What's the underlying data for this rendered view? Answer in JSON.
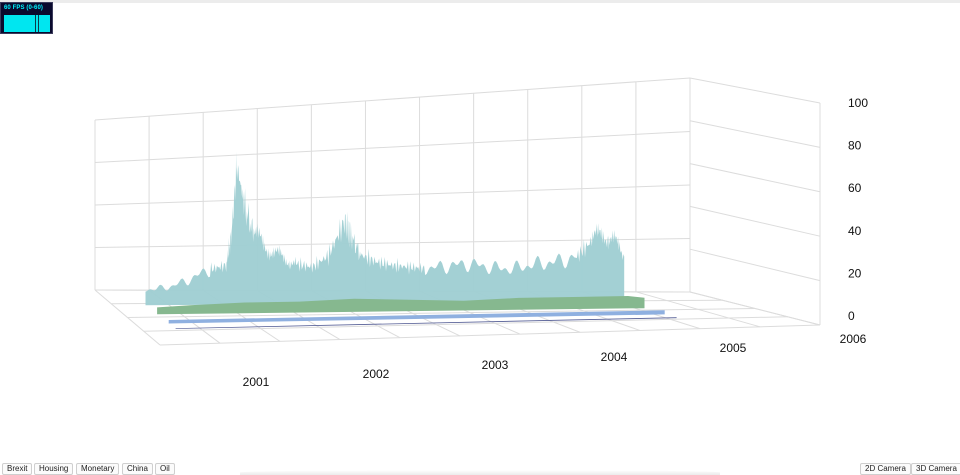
{
  "fps_meter": {
    "label": "60 FPS (0-60)"
  },
  "buttons": {
    "scenarios": [
      {
        "label": "Brexit"
      },
      {
        "label": "Housing"
      },
      {
        "label": "Monetary"
      },
      {
        "label": "China"
      },
      {
        "label": "Oil"
      }
    ],
    "camera_2d": "2D Camera",
    "camera_3d": "3D Camera"
  },
  "colors": {
    "series_back": "#9ecdd2",
    "series_middle": "#86b88f",
    "series_front_band": "#8fb0e0",
    "series_front_line": "#535c94",
    "grid": "#dcdcdc"
  },
  "chart_data": {
    "type": "area",
    "projection": "3d",
    "x_tick_labels": [
      "2001",
      "2002",
      "2003",
      "2004",
      "2005",
      "2006"
    ],
    "y_tick_labels": [
      "0",
      "20",
      "40",
      "60",
      "80",
      "100"
    ],
    "ylim": [
      0,
      100
    ],
    "grid": true,
    "series": [
      {
        "x": [
          2000.7,
          2000.9,
          2001.1,
          2001.3,
          2001.45,
          2001.5,
          2001.55,
          2001.62,
          2001.7,
          2001.8,
          2001.9,
          2002.0,
          2002.1,
          2002.25,
          2002.4,
          2002.55,
          2002.62,
          2002.7,
          2002.85,
          2003.0,
          2003.15,
          2003.3,
          2003.5,
          2003.7,
          2003.9,
          2004.1,
          2004.3,
          2004.5,
          2004.7,
          2004.85,
          2004.95,
          2005.05,
          2005.15
        ],
        "values": [
          9,
          10,
          14,
          20,
          22,
          40,
          78,
          55,
          40,
          33,
          28,
          25,
          22,
          20,
          26,
          44,
          35,
          26,
          22,
          20,
          19,
          18,
          19,
          20,
          18,
          17,
          19,
          20,
          22,
          30,
          34,
          30,
          22
        ]
      },
      {
        "x": [
          2000.7,
          2001.0,
          2001.5,
          2002.0,
          2002.5,
          2003.0,
          2003.5,
          2004.0,
          2004.5,
          2005.0,
          2005.15
        ],
        "values": [
          4,
          5,
          6,
          6,
          7,
          6,
          5,
          6,
          6,
          6,
          5
        ]
      },
      {
        "x": [
          2000.7,
          2005.15
        ],
        "values": [
          2,
          2
        ]
      },
      {
        "x": [
          2000.7,
          2005.15
        ],
        "values": [
          0.4,
          0.4
        ]
      }
    ]
  }
}
